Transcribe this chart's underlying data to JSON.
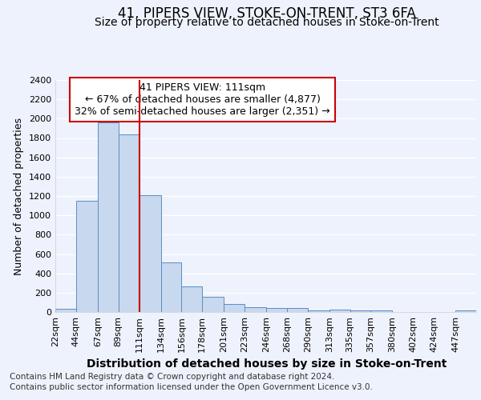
{
  "title": "41, PIPERS VIEW, STOKE-ON-TRENT, ST3 6FA",
  "subtitle": "Size of property relative to detached houses in Stoke-on-Trent",
  "xlabel": "Distribution of detached houses by size in Stoke-on-Trent",
  "ylabel": "Number of detached properties",
  "footer_line1": "Contains HM Land Registry data © Crown copyright and database right 2024.",
  "footer_line2": "Contains public sector information licensed under the Open Government Licence v3.0.",
  "annotation_title": "41 PIPERS VIEW: 111sqm",
  "annotation_line1": "← 67% of detached houses are smaller (4,877)",
  "annotation_line2": "32% of semi-detached houses are larger (2,351) →",
  "property_size": 111,
  "bin_edges": [
    22,
    44,
    67,
    89,
    111,
    134,
    156,
    178,
    201,
    223,
    246,
    268,
    290,
    313,
    335,
    357,
    380,
    402,
    424,
    447,
    469
  ],
  "bar_heights": [
    30,
    1150,
    1960,
    1840,
    1210,
    510,
    265,
    155,
    80,
    50,
    45,
    40,
    20,
    25,
    15,
    20,
    0,
    0,
    0,
    20
  ],
  "bar_color": "#c8d8ee",
  "bar_edge_color": "#5b8ec4",
  "highlight_color": "#cc0000",
  "ylim": [
    0,
    2400
  ],
  "yticks": [
    0,
    200,
    400,
    600,
    800,
    1000,
    1200,
    1400,
    1600,
    1800,
    2000,
    2200,
    2400
  ],
  "bg_color": "#eef2fc",
  "plot_bg_color": "#eef2fc",
  "grid_color": "#ffffff",
  "title_fontsize": 12,
  "subtitle_fontsize": 10,
  "xlabel_fontsize": 10,
  "ylabel_fontsize": 9,
  "tick_fontsize": 8,
  "annotation_fontsize": 9,
  "footer_fontsize": 7.5
}
